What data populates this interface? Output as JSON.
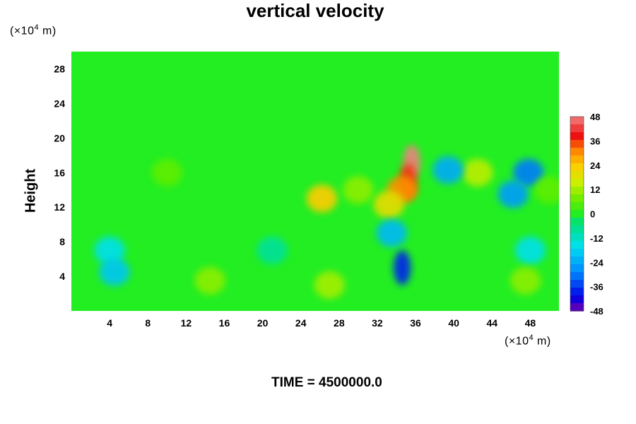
{
  "chart_data": {
    "type": "heatmap",
    "title": "vertical velocity",
    "xlabel": "",
    "ylabel": "Height",
    "x_unit": "(×10",
    "y_unit": "(×10",
    "unit_exponent": "4",
    "unit_suffix": " m)",
    "time_label": "TIME = 4500000.0",
    "xlim": [
      0,
      51
    ],
    "ylim": [
      0,
      30
    ],
    "x_ticks": [
      4,
      8,
      12,
      16,
      20,
      24,
      28,
      32,
      36,
      40,
      44,
      48
    ],
    "y_ticks": [
      4,
      8,
      12,
      16,
      20,
      24,
      28
    ],
    "colorbar": {
      "range": [
        -48,
        48
      ],
      "ticks": [
        48,
        36,
        24,
        12,
        0,
        -12,
        -24,
        -36,
        -48
      ],
      "levels": 25
    },
    "background_level": 0,
    "features": [
      {
        "x": 35.6,
        "y": 17.2,
        "value": 48
      },
      {
        "x": 35.2,
        "y": 15.0,
        "value": 36
      },
      {
        "x": 34.6,
        "y": 14.0,
        "value": 30
      },
      {
        "x": 26.2,
        "y": 13.0,
        "value": 24
      },
      {
        "x": 33.2,
        "y": 12.3,
        "value": 20
      },
      {
        "x": 42.5,
        "y": 16.0,
        "value": 14
      },
      {
        "x": 30.0,
        "y": 14.0,
        "value": 10
      },
      {
        "x": 47.8,
        "y": 16.0,
        "value": -30
      },
      {
        "x": 46.2,
        "y": 13.5,
        "value": -26
      },
      {
        "x": 34.6,
        "y": 5.0,
        "value": -38
      },
      {
        "x": 33.5,
        "y": 9.0,
        "value": -22
      },
      {
        "x": 39.4,
        "y": 16.3,
        "value": -24
      },
      {
        "x": 4.0,
        "y": 7.0,
        "value": -16
      },
      {
        "x": 4.5,
        "y": 4.5,
        "value": -20
      },
      {
        "x": 48.0,
        "y": 7.0,
        "value": -16
      },
      {
        "x": 27.0,
        "y": 3.0,
        "value": 12
      },
      {
        "x": 14.5,
        "y": 3.5,
        "value": 10
      },
      {
        "x": 47.5,
        "y": 3.5,
        "value": 10
      },
      {
        "x": 21.0,
        "y": 7.0,
        "value": -8
      },
      {
        "x": 10.0,
        "y": 16.0,
        "value": 6
      },
      {
        "x": 50.0,
        "y": 14.0,
        "value": 6
      }
    ]
  }
}
